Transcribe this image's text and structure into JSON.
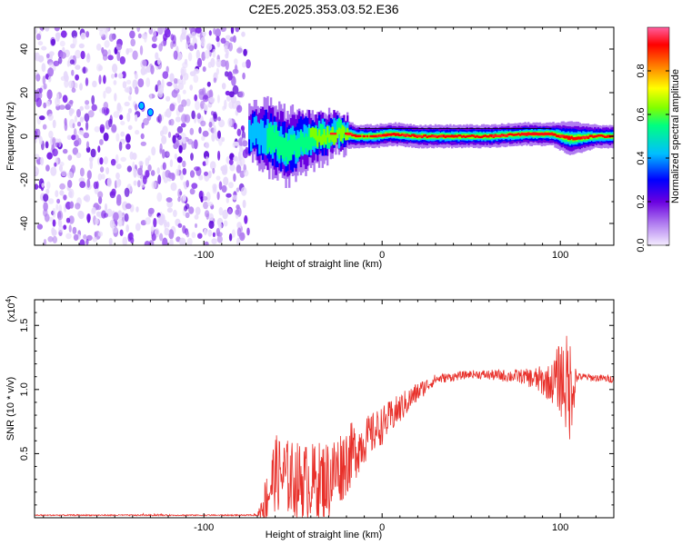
{
  "title": "C2E5.2025.353.03.52.E36",
  "chart_data": [
    {
      "type": "heatmap",
      "name": "spectrogram",
      "xlabel": "Height of straight line (km)",
      "ylabel": "Frequency (Hz)",
      "xlim": [
        -195,
        130
      ],
      "ylim": [
        -50,
        50
      ],
      "xticks": [
        -100,
        0,
        100
      ],
      "xtick_labels": [
        "-100",
        "0",
        "100"
      ],
      "yticks": [
        -40,
        -20,
        0,
        20,
        40
      ],
      "ytick_labels": [
        "-40",
        "-20",
        "0",
        "20",
        "40"
      ],
      "colorbar": {
        "label": "Normalized spectral amplitude",
        "range": [
          0,
          1
        ],
        "ticks": [
          0.0,
          0.2,
          0.4,
          0.6,
          0.8
        ],
        "tick_labels": [
          "0.0",
          "0.2",
          "0.4",
          "0.6",
          "0.8"
        ],
        "colors": [
          "#f4ecff",
          "#b07cf0",
          "#6a00e0",
          "#0000ff",
          "#00bfff",
          "#00ff80",
          "#80ff00",
          "#ffff00",
          "#ff8000",
          "#ff0000",
          "#ff60a0"
        ]
      },
      "noise_region_x": [
        -195,
        -75
      ],
      "signal_track": {
        "x": [
          -75,
          -65,
          -55,
          -45,
          -35,
          -25,
          -15,
          -5,
          5,
          20,
          40,
          60,
          80,
          95,
          105,
          120,
          130
        ],
        "freq": [
          2,
          0,
          -5,
          -2,
          0,
          2,
          0,
          0,
          1,
          0,
          0,
          0,
          1,
          1,
          -1,
          0,
          0
        ],
        "spread": [
          4,
          6,
          6,
          5,
          4,
          3,
          2,
          2,
          2,
          2,
          2,
          2,
          2,
          2,
          3,
          2,
          2
        ],
        "strength": [
          0.3,
          0.45,
          0.5,
          0.55,
          0.6,
          0.7,
          0.75,
          0.8,
          0.85,
          0.85,
          0.85,
          0.85,
          0.9,
          0.95,
          0.85,
          0.85,
          0.85
        ]
      },
      "annotations": [
        {
          "x": -135,
          "freq": 14
        },
        {
          "x": -130,
          "freq": 11
        }
      ]
    },
    {
      "type": "line",
      "name": "snr",
      "xlabel": "Height of straight line (km)",
      "ylabel": "SNR (10 * v/v)",
      "y_multiplier_base": "(x10",
      "y_multiplier_exp": "4",
      "y_multiplier_close": ")",
      "xlim": [
        -195,
        130
      ],
      "ylim": [
        0,
        1.7
      ],
      "xticks": [
        -100,
        0,
        100
      ],
      "xtick_labels": [
        "-100",
        "0",
        "100"
      ],
      "yticks": [
        0.5,
        1.0,
        1.5
      ],
      "ytick_labels": [
        "0.5",
        "1.0",
        "1.5"
      ],
      "color": "#e8302a",
      "series": [
        {
          "name": "SNR",
          "envelope_x": [
            -195,
            -70,
            -65,
            -60,
            -50,
            -40,
            -30,
            -20,
            -10,
            0,
            10,
            20,
            30,
            50,
            80,
            95,
            100,
            105,
            110,
            130
          ],
          "envelope_mean": [
            0.02,
            0.02,
            0.15,
            0.35,
            0.3,
            0.28,
            0.3,
            0.45,
            0.6,
            0.72,
            0.85,
            0.98,
            1.08,
            1.12,
            1.1,
            1.05,
            1.1,
            1.0,
            1.1,
            1.08
          ],
          "envelope_noise": [
            0.005,
            0.005,
            0.2,
            0.3,
            0.3,
            0.3,
            0.32,
            0.28,
            0.18,
            0.15,
            0.12,
            0.08,
            0.04,
            0.03,
            0.06,
            0.15,
            0.3,
            0.45,
            0.03,
            0.03
          ]
        }
      ]
    }
  ]
}
